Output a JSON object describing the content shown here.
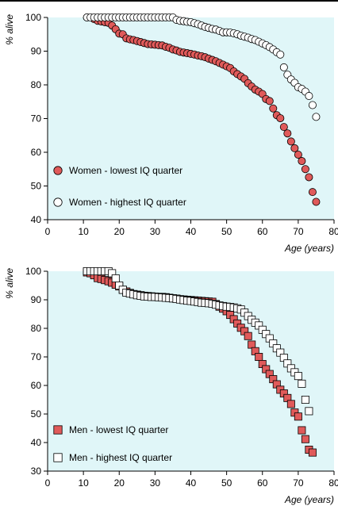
{
  "colors": {
    "plot_bg": "#e0f6f8",
    "lowest_fill": "#e05a5a",
    "highest_fill": "#ffffff",
    "marker_stroke": "#000000"
  },
  "chart_data": [
    {
      "type": "scatter",
      "ylabel": "% alive",
      "xlabel": "Age (years)",
      "xlim": [
        0,
        80
      ],
      "ylim": [
        40,
        100
      ],
      "xticks": [
        0,
        10,
        20,
        30,
        40,
        50,
        60,
        70,
        80
      ],
      "yticks": [
        40,
        50,
        60,
        70,
        80,
        90,
        100
      ],
      "legend_position": "bottom-left",
      "series": [
        {
          "name": "Women - lowest IQ quarter",
          "marker": "circle",
          "color": "#e05a5a",
          "points": [
            [
              11,
              100
            ],
            [
              13,
              99.5
            ],
            [
              14,
              99
            ],
            [
              15,
              98.8
            ],
            [
              16,
              98.6
            ],
            [
              17,
              98.4
            ],
            [
              18,
              97.6
            ],
            [
              19,
              96.5
            ],
            [
              20,
              95.2
            ],
            [
              21,
              95.0
            ],
            [
              22,
              93.8
            ],
            [
              23,
              93.5
            ],
            [
              24,
              93.3
            ],
            [
              25,
              93.0
            ],
            [
              26,
              92.7
            ],
            [
              27,
              92.4
            ],
            [
              28,
              92.1
            ],
            [
              29,
              92.0
            ],
            [
              30,
              91.9
            ],
            [
              31,
              91.8
            ],
            [
              32,
              91.7
            ],
            [
              33,
              91.3
            ],
            [
              34,
              91.0
            ],
            [
              35,
              90.5
            ],
            [
              36,
              90.2
            ],
            [
              37,
              89.8
            ],
            [
              38,
              89.6
            ],
            [
              39,
              89.4
            ],
            [
              40,
              89.2
            ],
            [
              41,
              89.0
            ],
            [
              42,
              88.7
            ],
            [
              43,
              88.5
            ],
            [
              44,
              88.2
            ],
            [
              45,
              87.8
            ],
            [
              46,
              87.4
            ],
            [
              47,
              87.0
            ],
            [
              48,
              86.5
            ],
            [
              49,
              86.0
            ],
            [
              50,
              85.5
            ],
            [
              51,
              85.0
            ],
            [
              52,
              84.0
            ],
            [
              53,
              83.2
            ],
            [
              54,
              82.5
            ],
            [
              55,
              81.8
            ],
            [
              56,
              80.5
            ],
            [
              57,
              79.5
            ],
            [
              58,
              78.6
            ],
            [
              59,
              78.0
            ],
            [
              60,
              77.3
            ],
            [
              61,
              75.8
            ],
            [
              62,
              75.2
            ],
            [
              63,
              73.0
            ],
            [
              64,
              71.0
            ],
            [
              65,
              70.1
            ],
            [
              66,
              67.5
            ],
            [
              67,
              65.6
            ],
            [
              68,
              63.2
            ],
            [
              69,
              61.2
            ],
            [
              70,
              59.3
            ],
            [
              71,
              57.4
            ],
            [
              72,
              55.0
            ],
            [
              73,
              52.6
            ],
            [
              74,
              48.2
            ],
            [
              75,
              45.3
            ]
          ]
        },
        {
          "name": "Women - highest IQ quarter",
          "marker": "circle",
          "color": "#ffffff",
          "points": [
            [
              11,
              100
            ],
            [
              12,
              100
            ],
            [
              13,
              100
            ],
            [
              14,
              100
            ],
            [
              15,
              100
            ],
            [
              16,
              100
            ],
            [
              17,
              100
            ],
            [
              18,
              100
            ],
            [
              19,
              100
            ],
            [
              20,
              100
            ],
            [
              21,
              100
            ],
            [
              22,
              100
            ],
            [
              23,
              100
            ],
            [
              24,
              100
            ],
            [
              25,
              100
            ],
            [
              26,
              100
            ],
            [
              27,
              100
            ],
            [
              28,
              100
            ],
            [
              29,
              100
            ],
            [
              30,
              100
            ],
            [
              31,
              100
            ],
            [
              32,
              100
            ],
            [
              33,
              100
            ],
            [
              34,
              100
            ],
            [
              35,
              100
            ],
            [
              36,
              99.3
            ],
            [
              37,
              99.0
            ],
            [
              38,
              98.9
            ],
            [
              39,
              98.7
            ],
            [
              40,
              98.6
            ],
            [
              41,
              98.3
            ],
            [
              42,
              98.0
            ],
            [
              43,
              97.6
            ],
            [
              44,
              97.2
            ],
            [
              45,
              96.9
            ],
            [
              46,
              96.6
            ],
            [
              47,
              96.4
            ],
            [
              48,
              96.0
            ],
            [
              49,
              95.6
            ],
            [
              50,
              95.6
            ],
            [
              51,
              95.5
            ],
            [
              52,
              95.3
            ],
            [
              53,
              95.0
            ],
            [
              54,
              94.6
            ],
            [
              55,
              94.3
            ],
            [
              56,
              94.0
            ],
            [
              57,
              93.6
            ],
            [
              58,
              93.3
            ],
            [
              59,
              92.8
            ],
            [
              60,
              92.3
            ],
            [
              61,
              91.8
            ],
            [
              62,
              91.2
            ],
            [
              63,
              90.5
            ],
            [
              64,
              89.7
            ],
            [
              65,
              89.0
            ],
            [
              66,
              85.2
            ],
            [
              67,
              83.0
            ],
            [
              68,
              81.6
            ],
            [
              69,
              80.6
            ],
            [
              70,
              79.3
            ],
            [
              71,
              78.8
            ],
            [
              72,
              78.0
            ],
            [
              73,
              76.7
            ],
            [
              74,
              74.0
            ],
            [
              75,
              70.5
            ]
          ]
        }
      ]
    },
    {
      "type": "scatter",
      "ylabel": "% alive",
      "xlabel": "Age (years)",
      "xlim": [
        0,
        80
      ],
      "ylim": [
        30,
        100
      ],
      "xticks": [
        0,
        10,
        20,
        30,
        40,
        50,
        60,
        70,
        80
      ],
      "yticks": [
        30,
        40,
        50,
        60,
        70,
        80,
        90,
        100
      ],
      "legend_position": "bottom-left",
      "series": [
        {
          "name": "Men - lowest IQ quarter",
          "marker": "square",
          "color": "#e05a5a",
          "points": [
            [
              11,
              99.6
            ],
            [
              12,
              99.3
            ],
            [
              13,
              98.6
            ],
            [
              14,
              97.6
            ],
            [
              15,
              97.3
            ],
            [
              16,
              96.9
            ],
            [
              17,
              96.5
            ],
            [
              18,
              96.0
            ],
            [
              19,
              95.3
            ],
            [
              20,
              94.7
            ],
            [
              21,
              93.5
            ],
            [
              22,
              92.9
            ],
            [
              23,
              92.4
            ],
            [
              24,
              92.0
            ],
            [
              25,
              91.8
            ],
            [
              26,
              91.6
            ],
            [
              27,
              91.4
            ],
            [
              28,
              91.3
            ],
            [
              29,
              91.2
            ],
            [
              30,
              91.1
            ],
            [
              31,
              91.0
            ],
            [
              32,
              91.0
            ],
            [
              33,
              90.9
            ],
            [
              34,
              90.7
            ],
            [
              35,
              90.5
            ],
            [
              36,
              90.4
            ],
            [
              37,
              90.2
            ],
            [
              38,
              90.1
            ],
            [
              39,
              90.0
            ],
            [
              40,
              89.9
            ],
            [
              41,
              89.8
            ],
            [
              42,
              89.7
            ],
            [
              43,
              89.6
            ],
            [
              44,
              89.5
            ],
            [
              45,
              89.4
            ],
            [
              46,
              89.3
            ],
            [
              47,
              88.5
            ],
            [
              48,
              87.6
            ],
            [
              49,
              86.9
            ],
            [
              50,
              86.0
            ],
            [
              51,
              84.7
            ],
            [
              52,
              83.2
            ],
            [
              53,
              81.7
            ],
            [
              54,
              80.2
            ],
            [
              55,
              79.0
            ],
            [
              56,
              77.3
            ],
            [
              57,
              74.3
            ],
            [
              58,
              72.0
            ],
            [
              59,
              70.0
            ],
            [
              60,
              67.5
            ],
            [
              61,
              65.7
            ],
            [
              62,
              64.0
            ],
            [
              63,
              62.2
            ],
            [
              64,
              60.4
            ],
            [
              65,
              58.5
            ],
            [
              66,
              57.2
            ],
            [
              67,
              55.6
            ],
            [
              68,
              53.5
            ],
            [
              69,
              50.5
            ],
            [
              70,
              49.1
            ],
            [
              71,
              44.3
            ],
            [
              72,
              41.2
            ],
            [
              73,
              37.5
            ],
            [
              74,
              36.5
            ]
          ]
        },
        {
          "name": "Men - highest IQ quarter",
          "marker": "square",
          "color": "#ffffff",
          "points": [
            [
              11,
              100
            ],
            [
              12,
              100
            ],
            [
              13,
              100
            ],
            [
              14,
              100
            ],
            [
              15,
              100
            ],
            [
              16,
              100
            ],
            [
              17,
              100
            ],
            [
              18,
              99.3
            ],
            [
              19,
              97.5
            ],
            [
              20,
              95.0
            ],
            [
              21,
              93.5
            ],
            [
              22,
              92.5
            ],
            [
              23,
              92.2
            ],
            [
              24,
              91.9
            ],
            [
              25,
              91.6
            ],
            [
              26,
              91.4
            ],
            [
              27,
              91.2
            ],
            [
              28,
              91.1
            ],
            [
              29,
              91.0
            ],
            [
              30,
              91.0
            ],
            [
              31,
              90.9
            ],
            [
              32,
              90.8
            ],
            [
              33,
              90.7
            ],
            [
              34,
              90.6
            ],
            [
              35,
              90.5
            ],
            [
              36,
              90.3
            ],
            [
              37,
              90.1
            ],
            [
              38,
              89.9
            ],
            [
              39,
              89.7
            ],
            [
              40,
              89.6
            ],
            [
              41,
              89.4
            ],
            [
              42,
              89.2
            ],
            [
              43,
              89.0
            ],
            [
              44,
              88.9
            ],
            [
              45,
              88.8
            ],
            [
              46,
              88.6
            ],
            [
              47,
              88.3
            ],
            [
              48,
              88.0
            ],
            [
              49,
              87.8
            ],
            [
              50,
              87.6
            ],
            [
              51,
              87.5
            ],
            [
              52,
              87.3
            ],
            [
              53,
              87.0
            ],
            [
              54,
              86.6
            ],
            [
              55,
              85.5
            ],
            [
              56,
              84.3
            ],
            [
              57,
              83.0
            ],
            [
              58,
              82.0
            ],
            [
              59,
              81.0
            ],
            [
              60,
              79.5
            ],
            [
              61,
              78.0
            ],
            [
              62,
              76.5
            ],
            [
              63,
              74.7
            ],
            [
              64,
              73.0
            ],
            [
              65,
              71.5
            ],
            [
              66,
              69.7
            ],
            [
              67,
              67.7
            ],
            [
              68,
              66.0
            ],
            [
              69,
              64.6
            ],
            [
              70,
              63.3
            ],
            [
              71,
              60.6
            ],
            [
              72,
              55.0
            ],
            [
              73,
              51.0
            ]
          ]
        }
      ]
    }
  ]
}
